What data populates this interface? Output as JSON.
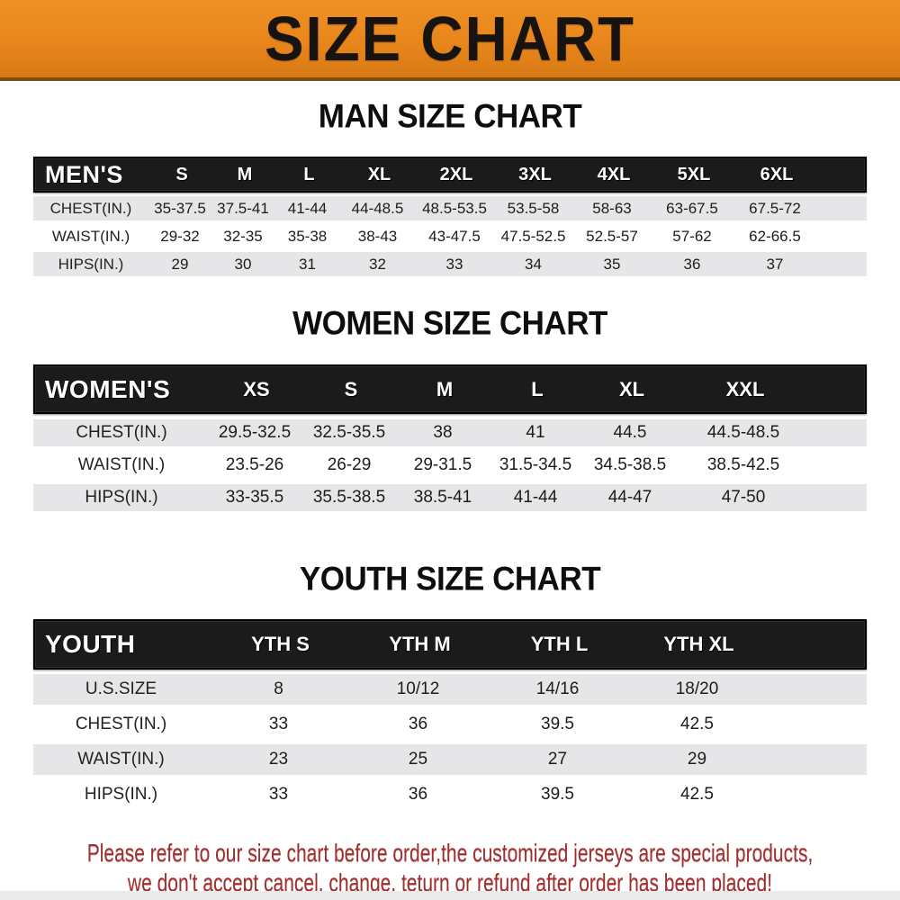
{
  "banner": {
    "title": "SIZE CHART",
    "bg_color": "#E8861C",
    "text_color": "#161310"
  },
  "sections": [
    {
      "heading": "MAN SIZE CHART",
      "table": {
        "header_label": "MEN'S",
        "columns": [
          "S",
          "M",
          "L",
          "XL",
          "2XL",
          "3XL",
          "4XL",
          "5XL",
          "6XL"
        ],
        "rows": [
          {
            "label": "CHEST(IN.)",
            "values": [
              "35-37.5",
              "37.5-41",
              "41-44",
              "44-48.5",
              "48.5-53.5",
              "53.5-58",
              "58-63",
              "63-67.5",
              "67.5-72"
            ]
          },
          {
            "label": "WAIST(IN.)",
            "values": [
              "29-32",
              "32-35",
              "35-38",
              "38-43",
              "43-47.5",
              "47.5-52.5",
              "52.5-57",
              "57-62",
              "62-66.5"
            ]
          },
          {
            "label": "HIPS(IN.)",
            "values": [
              "29",
              "30",
              "31",
              "32",
              "33",
              "34",
              "35",
              "36",
              "37"
            ]
          }
        ]
      }
    },
    {
      "heading": "WOMEN SIZE CHART",
      "table": {
        "header_label": "WOMEN'S",
        "columns": [
          "XS",
          "S",
          "M",
          "L",
          "XL",
          "XXL"
        ],
        "rows": [
          {
            "label": "CHEST(IN.)",
            "values": [
              "29.5-32.5",
              "32.5-35.5",
              "38",
              "41",
              "44.5",
              "44.5-48.5"
            ]
          },
          {
            "label": "WAIST(IN.)",
            "values": [
              "23.5-26",
              "26-29",
              "29-31.5",
              "31.5-34.5",
              "34.5-38.5",
              "38.5-42.5"
            ]
          },
          {
            "label": "HIPS(IN.)",
            "values": [
              "33-35.5",
              "35.5-38.5",
              "38.5-41",
              "41-44",
              "44-47",
              "47-50"
            ]
          }
        ]
      }
    },
    {
      "heading": "YOUTH SIZE CHART",
      "table": {
        "header_label": "YOUTH",
        "columns": [
          "YTH S",
          "YTH M",
          "YTH L",
          "YTH XL"
        ],
        "rows": [
          {
            "label": "U.S.SIZE",
            "values": [
              "8",
              "10/12",
              "14/16",
              "18/20"
            ]
          },
          {
            "label": "CHEST(IN.)",
            "values": [
              "33",
              "36",
              "39.5",
              "42.5"
            ]
          },
          {
            "label": "WAIST(IN.)",
            "values": [
              "23",
              "25",
              "27",
              "29"
            ]
          },
          {
            "label": "HIPS(IN.)",
            "values": [
              "33",
              "36",
              "39.5",
              "42.5"
            ]
          }
        ]
      }
    }
  ],
  "footer": {
    "line1": "Please refer to our size chart before order,the customized jerseys are special products,",
    "line2": "we don't accept cancel, change, teturn or refund after order has been placed!",
    "text_color": "#A32E2E"
  },
  "style_colors": {
    "table_header_bg": "#1B1B1B",
    "shaded_row_bg": "#E6E6E8"
  }
}
